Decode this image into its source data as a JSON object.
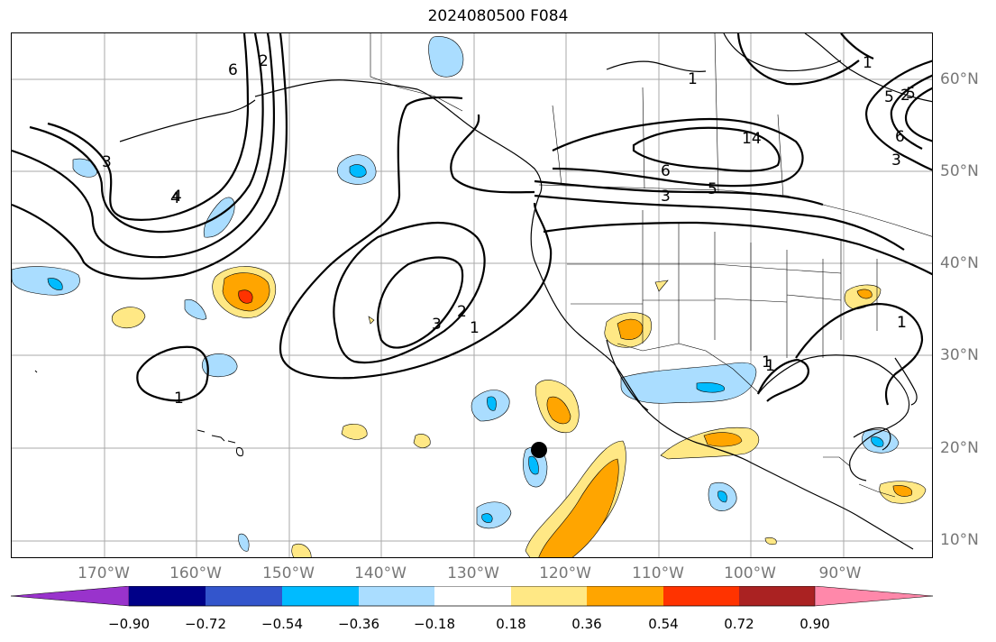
{
  "title": "2024080500 F084",
  "longitude_labels": [
    "170°W",
    "160°W",
    "150°W",
    "140°W",
    "130°W",
    "120°W",
    "110°W",
    "100°W",
    "90°W"
  ],
  "latitude_labels": [
    "60°N",
    "50°N",
    "40°N",
    "30°N",
    "20°N",
    "10°N"
  ],
  "colorbar": {
    "tick_labels": [
      "−0.90",
      "−0.72",
      "−0.54",
      "−0.36",
      "−0.18",
      "0.18",
      "0.36",
      "0.54",
      "0.72",
      "0.90"
    ],
    "colors": [
      "#9933cc",
      "#000088",
      "#3355cc",
      "#00bbff",
      "#aaddff",
      "#ffffff",
      "#ffe885",
      "#ffa500",
      "#ff3300",
      "#aa2222",
      "#ff88aa"
    ]
  },
  "contour_labels": [
    "1",
    "2",
    "3",
    "4",
    "5",
    "6",
    "1",
    "2",
    "3",
    "1",
    "1",
    "6",
    "5",
    "3",
    "1",
    "1",
    "2",
    "3",
    "4",
    "5",
    "6",
    "1",
    "1",
    "14"
  ],
  "marker": "storm-center-dot"
}
